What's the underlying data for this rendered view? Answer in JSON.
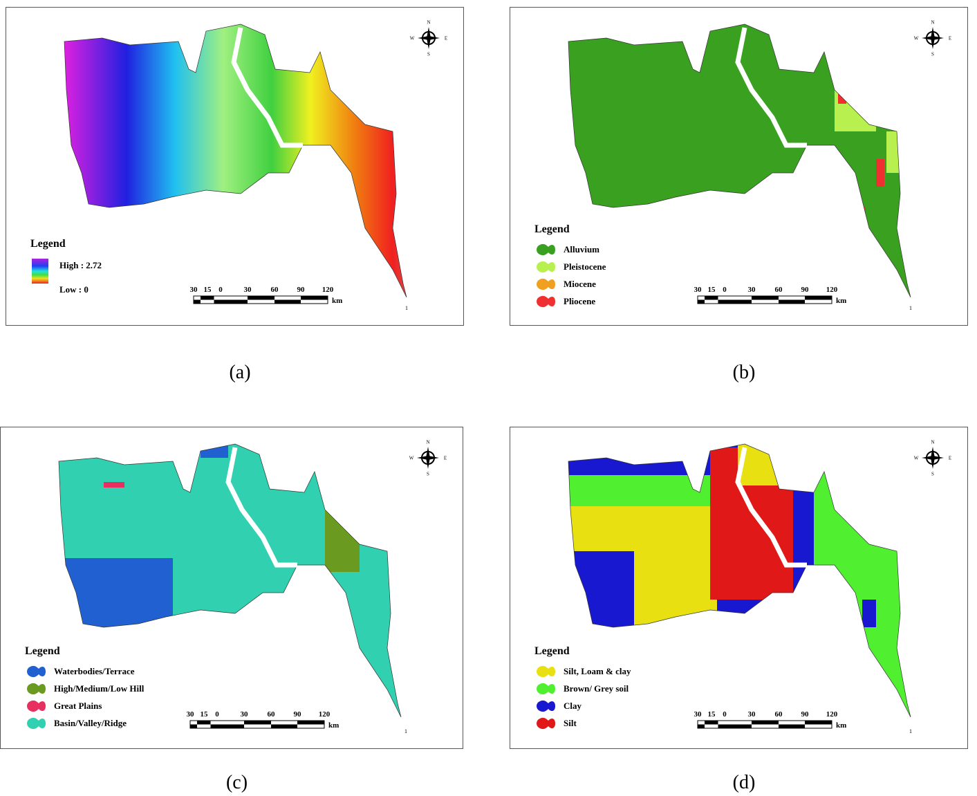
{
  "panels": [
    {
      "caption": "(a)",
      "compass": {
        "n": "N",
        "w": "W",
        "e": "E",
        "s": "S"
      },
      "legend": {
        "title": "Legend",
        "items": [
          {
            "label": "High : 2.72"
          },
          {
            "label": "Low : 0"
          }
        ]
      },
      "scale": {
        "ticks": [
          "30",
          "15",
          "0",
          "30",
          "60",
          "90",
          "120"
        ],
        "unit": "km"
      },
      "corner_note": "1"
    },
    {
      "caption": "(b)",
      "compass": {
        "n": "N",
        "w": "W",
        "e": "E",
        "s": "S"
      },
      "legend": {
        "title": "Legend",
        "items": [
          {
            "label": "Alluvium",
            "color": "#3aa020"
          },
          {
            "label": "Pleistocene",
            "color": "#b8f050"
          },
          {
            "label": "Miocene",
            "color": "#f0a020"
          },
          {
            "label": "Pliocene",
            "color": "#f03030"
          }
        ]
      },
      "scale": {
        "ticks": [
          "30",
          "15",
          "0",
          "30",
          "60",
          "90",
          "120"
        ],
        "unit": "km"
      },
      "corner_note": "1"
    },
    {
      "caption": "(c)",
      "compass": {
        "n": "N",
        "w": "W",
        "e": "E",
        "s": "S"
      },
      "legend": {
        "title": "Legend",
        "items": [
          {
            "label": "Waterbodies/Terrace",
            "color": "#2060d0"
          },
          {
            "label": "High/Medium/Low Hill",
            "color": "#6a9a20"
          },
          {
            "label": "Great Plains",
            "color": "#e83060"
          },
          {
            "label": "Basin/Valley/Ridge",
            "color": "#30d0b0"
          }
        ]
      },
      "scale": {
        "ticks": [
          "30",
          "15",
          "0",
          "30",
          "60",
          "90",
          "120"
        ],
        "unit": "km"
      },
      "corner_note": "1"
    },
    {
      "caption": "(d)",
      "compass": {
        "n": "N",
        "w": "W",
        "e": "E",
        "s": "S"
      },
      "legend": {
        "title": "Legend",
        "items": [
          {
            "label": "Silt, Loam & clay",
            "color": "#e8e010"
          },
          {
            "label": "Brown/ Grey soil",
            "color": "#50f030"
          },
          {
            "label": "Clay",
            "color": "#1818d0"
          },
          {
            "label": "Silt",
            "color": "#e01818"
          }
        ]
      },
      "scale": {
        "ticks": [
          "30",
          "15",
          "0",
          "30",
          "60",
          "90",
          "120"
        ],
        "unit": "km"
      },
      "corner_note": "1"
    }
  ]
}
